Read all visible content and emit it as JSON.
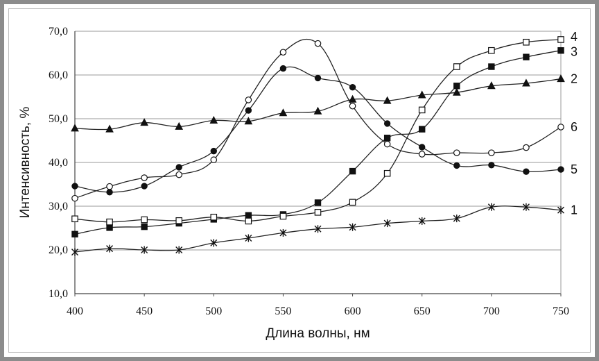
{
  "chart_data": {
    "type": "line",
    "title": "",
    "xlabel": "Длина волны, нм",
    "ylabel": "Интенсивность, %",
    "xlim": [
      400,
      750
    ],
    "ylim": [
      10,
      70
    ],
    "x_ticks": [
      "400",
      "450",
      "500",
      "550",
      "600",
      "650",
      "700",
      "750"
    ],
    "y_ticks": [
      "10,0",
      "20,0",
      "30,0",
      "40,0",
      "50,0",
      "60,0",
      "70,0"
    ],
    "grid": "horizontal",
    "x": [
      400,
      425,
      450,
      475,
      500,
      525,
      550,
      575,
      600,
      625,
      650,
      675,
      700,
      725,
      750
    ],
    "series": [
      {
        "name": "1",
        "marker": "asterisk",
        "values": [
          19.5,
          20.3,
          20.0,
          20.0,
          21.6,
          22.7,
          23.9,
          24.8,
          25.2,
          26.1,
          26.6,
          27.2,
          29.8,
          29.8,
          29.1
        ]
      },
      {
        "name": "2",
        "marker": "filled-triangle",
        "values": [
          47.8,
          47.6,
          49.1,
          48.2,
          49.6,
          49.4,
          51.3,
          51.7,
          54.4,
          54.1,
          55.4,
          56.0,
          57.5,
          58.1,
          59.1
        ]
      },
      {
        "name": "3",
        "marker": "filled-square",
        "values": [
          23.6,
          25.1,
          25.3,
          26.1,
          27.0,
          27.9,
          28.1,
          30.8,
          38.0,
          45.6,
          47.6,
          57.5,
          61.9,
          64.1,
          65.6
        ]
      },
      {
        "name": "4",
        "marker": "open-square",
        "values": [
          27.1,
          26.4,
          26.9,
          26.7,
          27.5,
          26.6,
          27.7,
          28.6,
          30.9,
          37.5,
          52.0,
          61.9,
          65.6,
          67.5,
          68.1
        ]
      },
      {
        "name": "5",
        "marker": "filled-circle",
        "values": [
          34.6,
          33.2,
          34.6,
          38.9,
          42.6,
          51.9,
          61.5,
          59.3,
          57.2,
          48.9,
          43.5,
          39.3,
          39.4,
          37.9,
          38.4
        ]
      },
      {
        "name": "6",
        "marker": "open-circle",
        "values": [
          31.8,
          34.5,
          36.5,
          37.2,
          40.6,
          54.3,
          65.2,
          67.2,
          52.9,
          44.2,
          41.9,
          42.2,
          42.2,
          43.4,
          48.1
        ]
      }
    ],
    "legend": "labels at right end of lines"
  }
}
